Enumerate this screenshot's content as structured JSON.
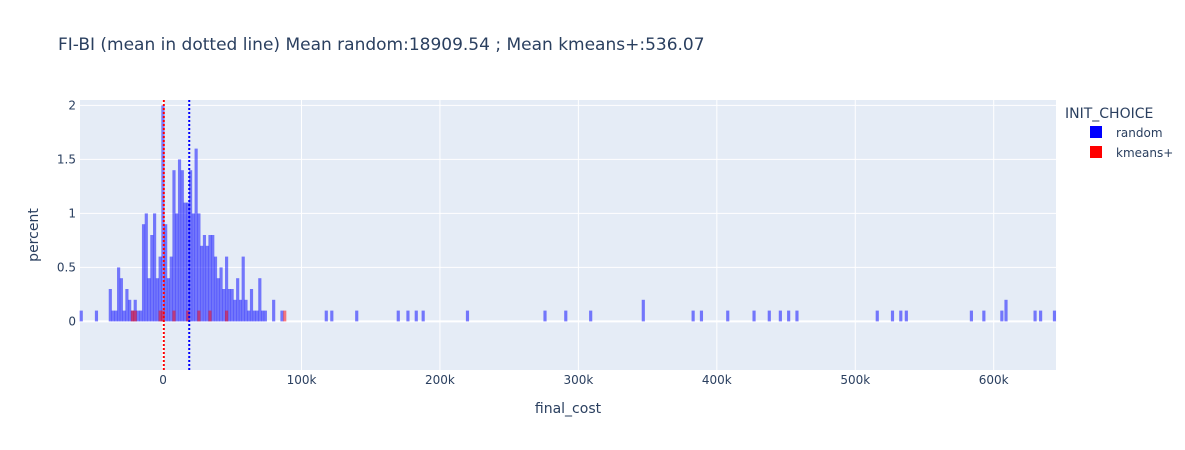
{
  "chart_data": {
    "type": "bar",
    "title": "FI-BI (mean in dotted line) Mean random:18909.54 ; Mean kmeans+:536.07",
    "xlabel": "final_cost",
    "ylabel": "percent",
    "xlim": [
      -60000,
      645000
    ],
    "ylim": [
      -0.45,
      2.05
    ],
    "grid": true,
    "bin_width": 2500,
    "x_ticks": [
      0,
      100000,
      200000,
      300000,
      400000,
      500000,
      600000
    ],
    "x_tick_labels": [
      "0",
      "100k",
      "200k",
      "300k",
      "400k",
      "500k",
      "600k"
    ],
    "y_ticks": [
      0,
      0.5,
      1,
      1.5,
      2
    ],
    "y_tick_labels": [
      "0",
      "0.5",
      "1",
      "1.5",
      "2"
    ],
    "legend": {
      "title": "INIT_CHOICE",
      "placement": "right"
    },
    "series": [
      {
        "name": "random",
        "color": "#0000ff",
        "opacity": 0.5,
        "mean": 18909.54,
        "mean_line": "dotted",
        "points": [
          [
            -59000,
            0.1
          ],
          [
            -48000,
            0.1
          ],
          [
            -38000,
            0.3
          ],
          [
            -36000,
            0.1
          ],
          [
            -34000,
            0.1
          ],
          [
            -32000,
            0.5
          ],
          [
            -30000,
            0.4
          ],
          [
            -28000,
            0.1
          ],
          [
            -26000,
            0.3
          ],
          [
            -24000,
            0.2
          ],
          [
            -22000,
            0.1
          ],
          [
            -20000,
            0.2
          ],
          [
            -18000,
            0.1
          ],
          [
            -16000,
            0.1
          ],
          [
            -14000,
            0.9
          ],
          [
            -12000,
            1.0
          ],
          [
            -10000,
            0.4
          ],
          [
            -8000,
            0.8
          ],
          [
            -6000,
            1.0
          ],
          [
            -4000,
            0.4
          ],
          [
            -2000,
            0.6
          ],
          [
            0,
            2.0
          ],
          [
            2000,
            0.9
          ],
          [
            4000,
            0.4
          ],
          [
            6000,
            0.6
          ],
          [
            8000,
            1.4
          ],
          [
            10000,
            1.0
          ],
          [
            12000,
            1.5
          ],
          [
            14000,
            1.4
          ],
          [
            16000,
            1.1
          ],
          [
            18000,
            1.1
          ],
          [
            20000,
            1.4
          ],
          [
            22000,
            1.0
          ],
          [
            24000,
            1.6
          ],
          [
            26000,
            1.0
          ],
          [
            28000,
            0.7
          ],
          [
            30000,
            0.8
          ],
          [
            32000,
            0.7
          ],
          [
            34000,
            0.8
          ],
          [
            36000,
            0.8
          ],
          [
            38000,
            0.6
          ],
          [
            40000,
            0.4
          ],
          [
            42000,
            0.5
          ],
          [
            44000,
            0.3
          ],
          [
            46000,
            0.6
          ],
          [
            48000,
            0.3
          ],
          [
            50000,
            0.3
          ],
          [
            52000,
            0.2
          ],
          [
            54000,
            0.4
          ],
          [
            56000,
            0.2
          ],
          [
            58000,
            0.6
          ],
          [
            60000,
            0.2
          ],
          [
            62000,
            0.1
          ],
          [
            64000,
            0.3
          ],
          [
            66000,
            0.1
          ],
          [
            68000,
            0.1
          ],
          [
            70000,
            0.4
          ],
          [
            72000,
            0.1
          ],
          [
            74000,
            0.1
          ],
          [
            80000,
            0.2
          ],
          [
            86000,
            0.1
          ],
          [
            118000,
            0.1
          ],
          [
            122000,
            0.1
          ],
          [
            140000,
            0.1
          ],
          [
            170000,
            0.1
          ],
          [
            177000,
            0.1
          ],
          [
            183000,
            0.1
          ],
          [
            188000,
            0.1
          ],
          [
            220000,
            0.1
          ],
          [
            276000,
            0.1
          ],
          [
            291000,
            0.1
          ],
          [
            309000,
            0.1
          ],
          [
            347000,
            0.2
          ],
          [
            383000,
            0.1
          ],
          [
            389000,
            0.1
          ],
          [
            408000,
            0.1
          ],
          [
            427000,
            0.1
          ],
          [
            438000,
            0.1
          ],
          [
            446000,
            0.1
          ],
          [
            452000,
            0.1
          ],
          [
            458000,
            0.1
          ],
          [
            516000,
            0.1
          ],
          [
            527000,
            0.1
          ],
          [
            533000,
            0.1
          ],
          [
            537000,
            0.1
          ],
          [
            584000,
            0.1
          ],
          [
            593000,
            0.1
          ],
          [
            606000,
            0.1
          ],
          [
            609000,
            0.2
          ],
          [
            630000,
            0.1
          ],
          [
            634000,
            0.1
          ],
          [
            644000,
            0.1
          ]
        ]
      },
      {
        "name": "kmeans+",
        "color": "#ff0000",
        "opacity": 0.5,
        "mean": 536.07,
        "mean_line": "dotted",
        "points": [
          [
            -22000,
            0.1
          ],
          [
            -20000,
            0.1
          ],
          [
            -2000,
            0.1
          ],
          [
            0,
            0.1
          ],
          [
            8000,
            0.1
          ],
          [
            18000,
            0.1
          ],
          [
            26000,
            0.1
          ],
          [
            34000,
            0.1
          ],
          [
            46000,
            0.1
          ],
          [
            88000,
            0.1
          ]
        ]
      }
    ]
  }
}
